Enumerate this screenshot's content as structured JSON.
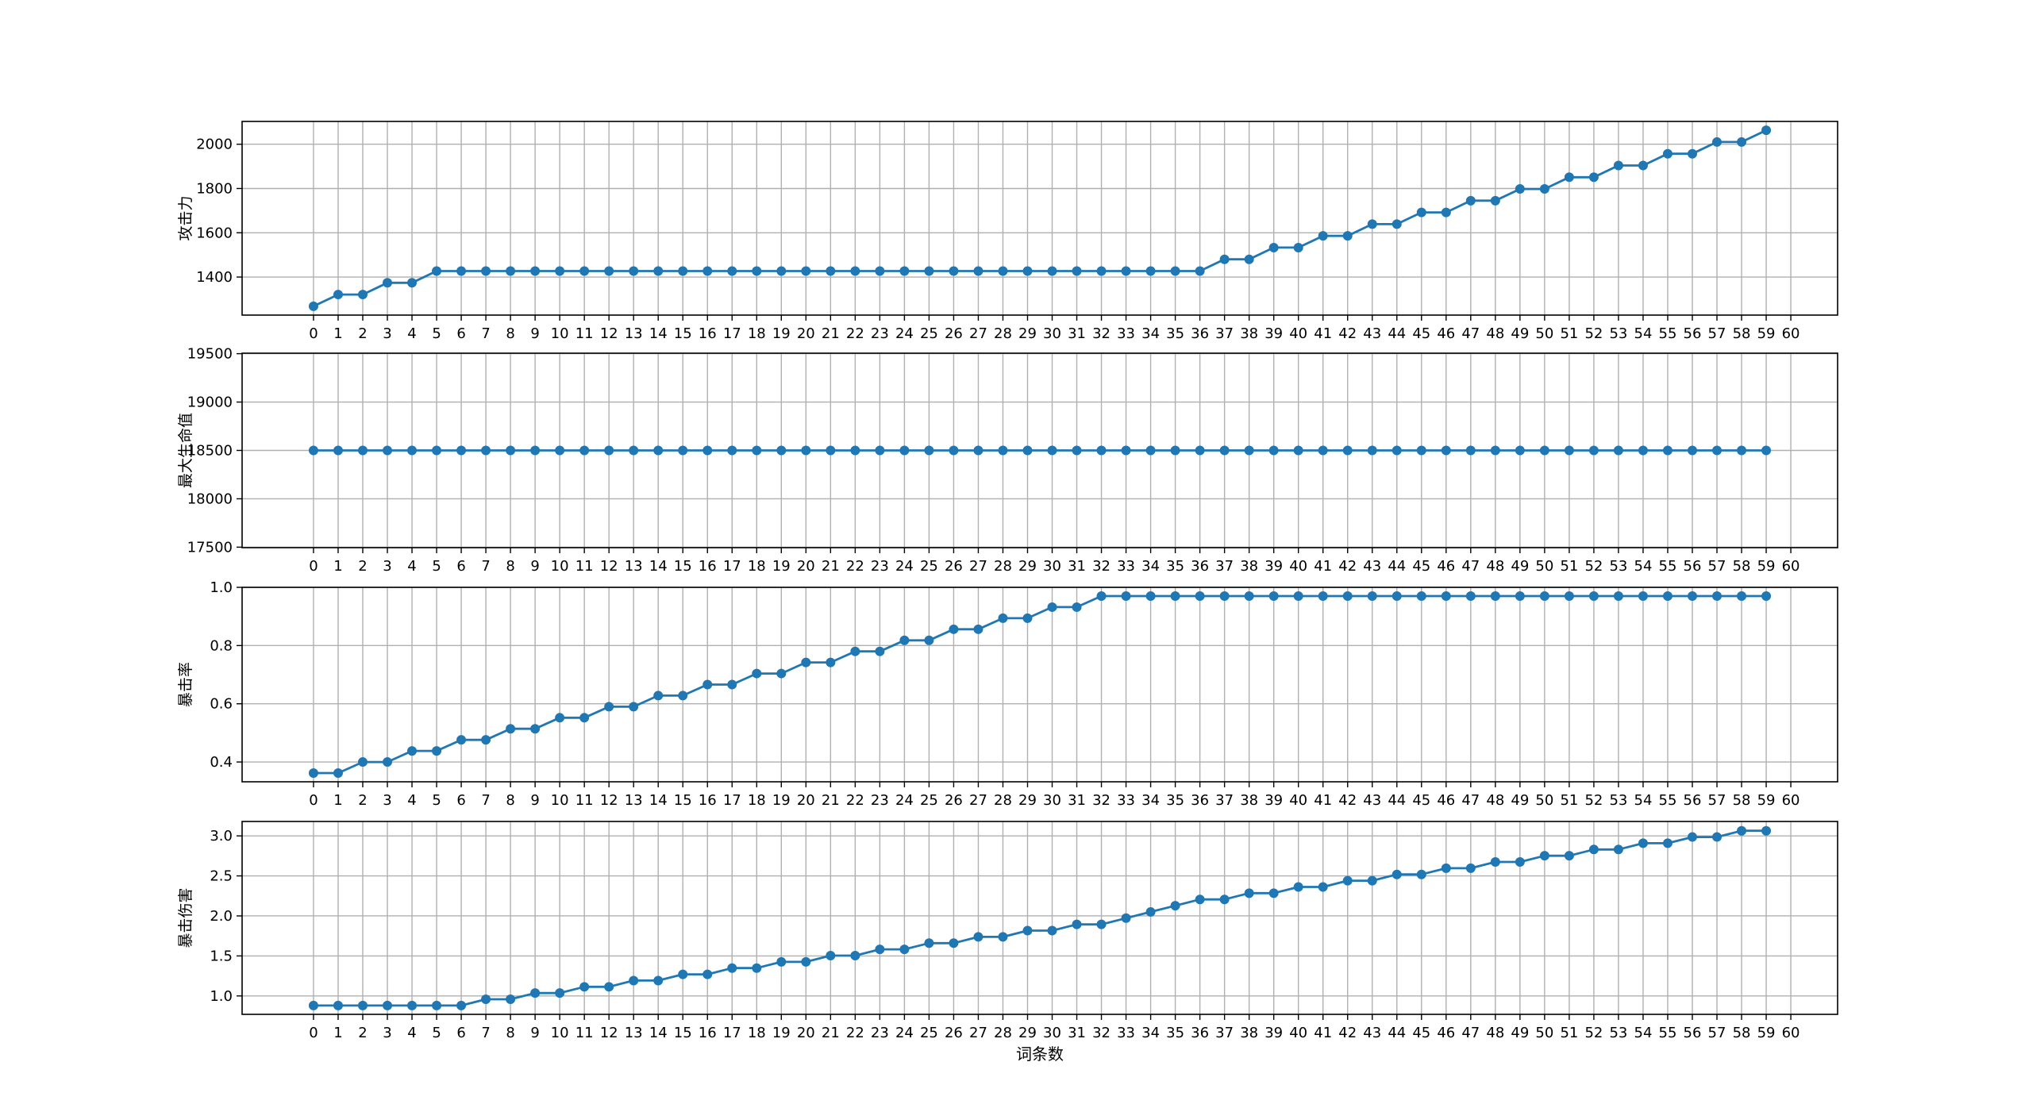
{
  "chart_data": [
    {
      "type": "line",
      "title": "",
      "xlabel": "",
      "ylabel": "攻击力",
      "x": [
        0,
        1,
        2,
        3,
        4,
        5,
        6,
        7,
        8,
        9,
        10,
        11,
        12,
        13,
        14,
        15,
        16,
        17,
        18,
        19,
        20,
        21,
        22,
        23,
        24,
        25,
        26,
        27,
        28,
        29,
        30,
        31,
        32,
        33,
        34,
        35,
        36,
        37,
        38,
        39,
        40,
        41,
        42,
        43,
        44,
        45,
        46,
        47,
        48,
        49,
        50,
        51,
        52,
        53,
        54,
        55,
        56,
        57,
        58,
        59
      ],
      "values": [
        1268,
        1321,
        1321,
        1374,
        1374,
        1427,
        1427,
        1427,
        1427,
        1427,
        1427,
        1427,
        1427,
        1427,
        1427,
        1427,
        1427,
        1427,
        1427,
        1427,
        1427,
        1427,
        1427,
        1427,
        1427,
        1427,
        1427,
        1427,
        1427,
        1427,
        1427,
        1427,
        1427,
        1427,
        1427,
        1427,
        1427,
        1480,
        1480,
        1533,
        1533,
        1586,
        1586,
        1639,
        1639,
        1692,
        1692,
        1745,
        1745,
        1798,
        1798,
        1851,
        1851,
        1904,
        1904,
        1957,
        1957,
        2010,
        2010,
        2063
      ],
      "xticks": [
        "0",
        "1",
        "2",
        "3",
        "4",
        "5",
        "6",
        "7",
        "8",
        "9",
        "10",
        "11",
        "12",
        "13",
        "14",
        "15",
        "16",
        "17",
        "18",
        "19",
        "20",
        "21",
        "22",
        "23",
        "24",
        "25",
        "26",
        "27",
        "28",
        "29",
        "30",
        "31",
        "32",
        "33",
        "34",
        "35",
        "36",
        "37",
        "38",
        "39",
        "40",
        "41",
        "42",
        "43",
        "44",
        "45",
        "46",
        "47",
        "48",
        "49",
        "50",
        "51",
        "52",
        "53",
        "54",
        "55",
        "56",
        "57",
        "58",
        "59",
        "60"
      ],
      "yticks": [
        1400,
        1600,
        1800,
        2000
      ],
      "ytick_labels": [
        "1400",
        "1600",
        "1800",
        "2000"
      ],
      "ylim": [
        1228,
        2103
      ],
      "xlim": [
        -2.9,
        61.9
      ],
      "grid": true,
      "color": "#1f77b4"
    },
    {
      "type": "line",
      "title": "",
      "xlabel": "",
      "ylabel": "最大生命值",
      "x": [
        0,
        1,
        2,
        3,
        4,
        5,
        6,
        7,
        8,
        9,
        10,
        11,
        12,
        13,
        14,
        15,
        16,
        17,
        18,
        19,
        20,
        21,
        22,
        23,
        24,
        25,
        26,
        27,
        28,
        29,
        30,
        31,
        32,
        33,
        34,
        35,
        36,
        37,
        38,
        39,
        40,
        41,
        42,
        43,
        44,
        45,
        46,
        47,
        48,
        49,
        50,
        51,
        52,
        53,
        54,
        55,
        56,
        57,
        58,
        59
      ],
      "values": [
        18500,
        18500,
        18500,
        18500,
        18500,
        18500,
        18500,
        18500,
        18500,
        18500,
        18500,
        18500,
        18500,
        18500,
        18500,
        18500,
        18500,
        18500,
        18500,
        18500,
        18500,
        18500,
        18500,
        18500,
        18500,
        18500,
        18500,
        18500,
        18500,
        18500,
        18500,
        18500,
        18500,
        18500,
        18500,
        18500,
        18500,
        18500,
        18500,
        18500,
        18500,
        18500,
        18500,
        18500,
        18500,
        18500,
        18500,
        18500,
        18500,
        18500,
        18500,
        18500,
        18500,
        18500,
        18500,
        18500,
        18500,
        18500,
        18500,
        18500
      ],
      "xticks": [
        "0",
        "1",
        "2",
        "3",
        "4",
        "5",
        "6",
        "7",
        "8",
        "9",
        "10",
        "11",
        "12",
        "13",
        "14",
        "15",
        "16",
        "17",
        "18",
        "19",
        "20",
        "21",
        "22",
        "23",
        "24",
        "25",
        "26",
        "27",
        "28",
        "29",
        "30",
        "31",
        "32",
        "33",
        "34",
        "35",
        "36",
        "37",
        "38",
        "39",
        "40",
        "41",
        "42",
        "43",
        "44",
        "45",
        "46",
        "47",
        "48",
        "49",
        "50",
        "51",
        "52",
        "53",
        "54",
        "55",
        "56",
        "57",
        "58",
        "59",
        "60"
      ],
      "yticks": [
        17500,
        18000,
        18500,
        19000,
        19500
      ],
      "ytick_labels": [
        "17500",
        "18000",
        "18500",
        "19000",
        "19500"
      ],
      "ylim": [
        17495,
        19505
      ],
      "xlim": [
        -2.9,
        61.9
      ],
      "grid": true,
      "color": "#1f77b4"
    },
    {
      "type": "line",
      "title": "",
      "xlabel": "",
      "ylabel": "暴击率",
      "x": [
        0,
        1,
        2,
        3,
        4,
        5,
        6,
        7,
        8,
        9,
        10,
        11,
        12,
        13,
        14,
        15,
        16,
        17,
        18,
        19,
        20,
        21,
        22,
        23,
        24,
        25,
        26,
        27,
        28,
        29,
        30,
        31,
        32,
        33,
        34,
        35,
        36,
        37,
        38,
        39,
        40,
        41,
        42,
        43,
        44,
        45,
        46,
        47,
        48,
        49,
        50,
        51,
        52,
        53,
        54,
        55,
        56,
        57,
        58,
        59
      ],
      "values": [
        0.362,
        0.362,
        0.4,
        0.4,
        0.438,
        0.438,
        0.476,
        0.476,
        0.514,
        0.514,
        0.552,
        0.552,
        0.59,
        0.59,
        0.628,
        0.628,
        0.666,
        0.666,
        0.704,
        0.704,
        0.742,
        0.742,
        0.78,
        0.78,
        0.818,
        0.818,
        0.856,
        0.856,
        0.894,
        0.894,
        0.932,
        0.932,
        0.97,
        0.97,
        0.97,
        0.97,
        0.97,
        0.97,
        0.97,
        0.97,
        0.97,
        0.97,
        0.97,
        0.97,
        0.97,
        0.97,
        0.97,
        0.97,
        0.97,
        0.97,
        0.97,
        0.97,
        0.97,
        0.97,
        0.97,
        0.97,
        0.97,
        0.97,
        0.97,
        0.97
      ],
      "xticks": [
        "0",
        "1",
        "2",
        "3",
        "4",
        "5",
        "6",
        "7",
        "8",
        "9",
        "10",
        "11",
        "12",
        "13",
        "14",
        "15",
        "16",
        "17",
        "18",
        "19",
        "20",
        "21",
        "22",
        "23",
        "24",
        "25",
        "26",
        "27",
        "28",
        "29",
        "30",
        "31",
        "32",
        "33",
        "34",
        "35",
        "36",
        "37",
        "38",
        "39",
        "40",
        "41",
        "42",
        "43",
        "44",
        "45",
        "46",
        "47",
        "48",
        "49",
        "50",
        "51",
        "52",
        "53",
        "54",
        "55",
        "56",
        "57",
        "58",
        "59",
        "60"
      ],
      "yticks": [
        0.4,
        0.6,
        0.8,
        1.0
      ],
      "ytick_labels": [
        "0.4",
        "0.6",
        "0.8",
        "1.0"
      ],
      "ylim": [
        0.332,
        1.0
      ],
      "xlim": [
        -2.9,
        61.9
      ],
      "grid": true,
      "color": "#1f77b4"
    },
    {
      "type": "line",
      "title": "",
      "xlabel": "词条数",
      "ylabel": "暴击伤害",
      "x": [
        0,
        1,
        2,
        3,
        4,
        5,
        6,
        7,
        8,
        9,
        10,
        11,
        12,
        13,
        14,
        15,
        16,
        17,
        18,
        19,
        20,
        21,
        22,
        23,
        24,
        25,
        26,
        27,
        28,
        29,
        30,
        31,
        32,
        33,
        34,
        35,
        36,
        37,
        38,
        39,
        40,
        41,
        42,
        43,
        44,
        45,
        46,
        47,
        48,
        49,
        50,
        51,
        52,
        53,
        54,
        55,
        56,
        57,
        58,
        59
      ],
      "values": [
        0.88,
        0.88,
        0.88,
        0.88,
        0.88,
        0.88,
        0.88,
        0.958,
        0.958,
        1.036,
        1.036,
        1.114,
        1.114,
        1.192,
        1.192,
        1.27,
        1.27,
        1.348,
        1.348,
        1.426,
        1.426,
        1.504,
        1.504,
        1.582,
        1.582,
        1.66,
        1.66,
        1.738,
        1.738,
        1.816,
        1.816,
        1.894,
        1.894,
        1.972,
        2.05,
        2.128,
        2.206,
        2.206,
        2.284,
        2.284,
        2.362,
        2.362,
        2.44,
        2.44,
        2.518,
        2.518,
        2.596,
        2.596,
        2.674,
        2.674,
        2.752,
        2.752,
        2.83,
        2.83,
        2.908,
        2.908,
        2.986,
        2.986,
        3.064,
        3.064
      ],
      "xticks": [
        "0",
        "1",
        "2",
        "3",
        "4",
        "5",
        "6",
        "7",
        "8",
        "9",
        "10",
        "11",
        "12",
        "13",
        "14",
        "15",
        "16",
        "17",
        "18",
        "19",
        "20",
        "21",
        "22",
        "23",
        "24",
        "25",
        "26",
        "27",
        "28",
        "29",
        "30",
        "31",
        "32",
        "33",
        "34",
        "35",
        "36",
        "37",
        "38",
        "39",
        "40",
        "41",
        "42",
        "43",
        "44",
        "45",
        "46",
        "47",
        "48",
        "49",
        "50",
        "51",
        "52",
        "53",
        "54",
        "55",
        "56",
        "57",
        "58",
        "59",
        "60"
      ],
      "yticks": [
        1.0,
        1.5,
        2.0,
        2.5,
        3.0
      ],
      "ytick_labels": [
        "1.0",
        "1.5",
        "2.0",
        "2.5",
        "3.0"
      ],
      "ylim": [
        0.77,
        3.18
      ],
      "xlim": [
        -2.9,
        61.9
      ],
      "grid": true,
      "color": "#1f77b4"
    }
  ]
}
